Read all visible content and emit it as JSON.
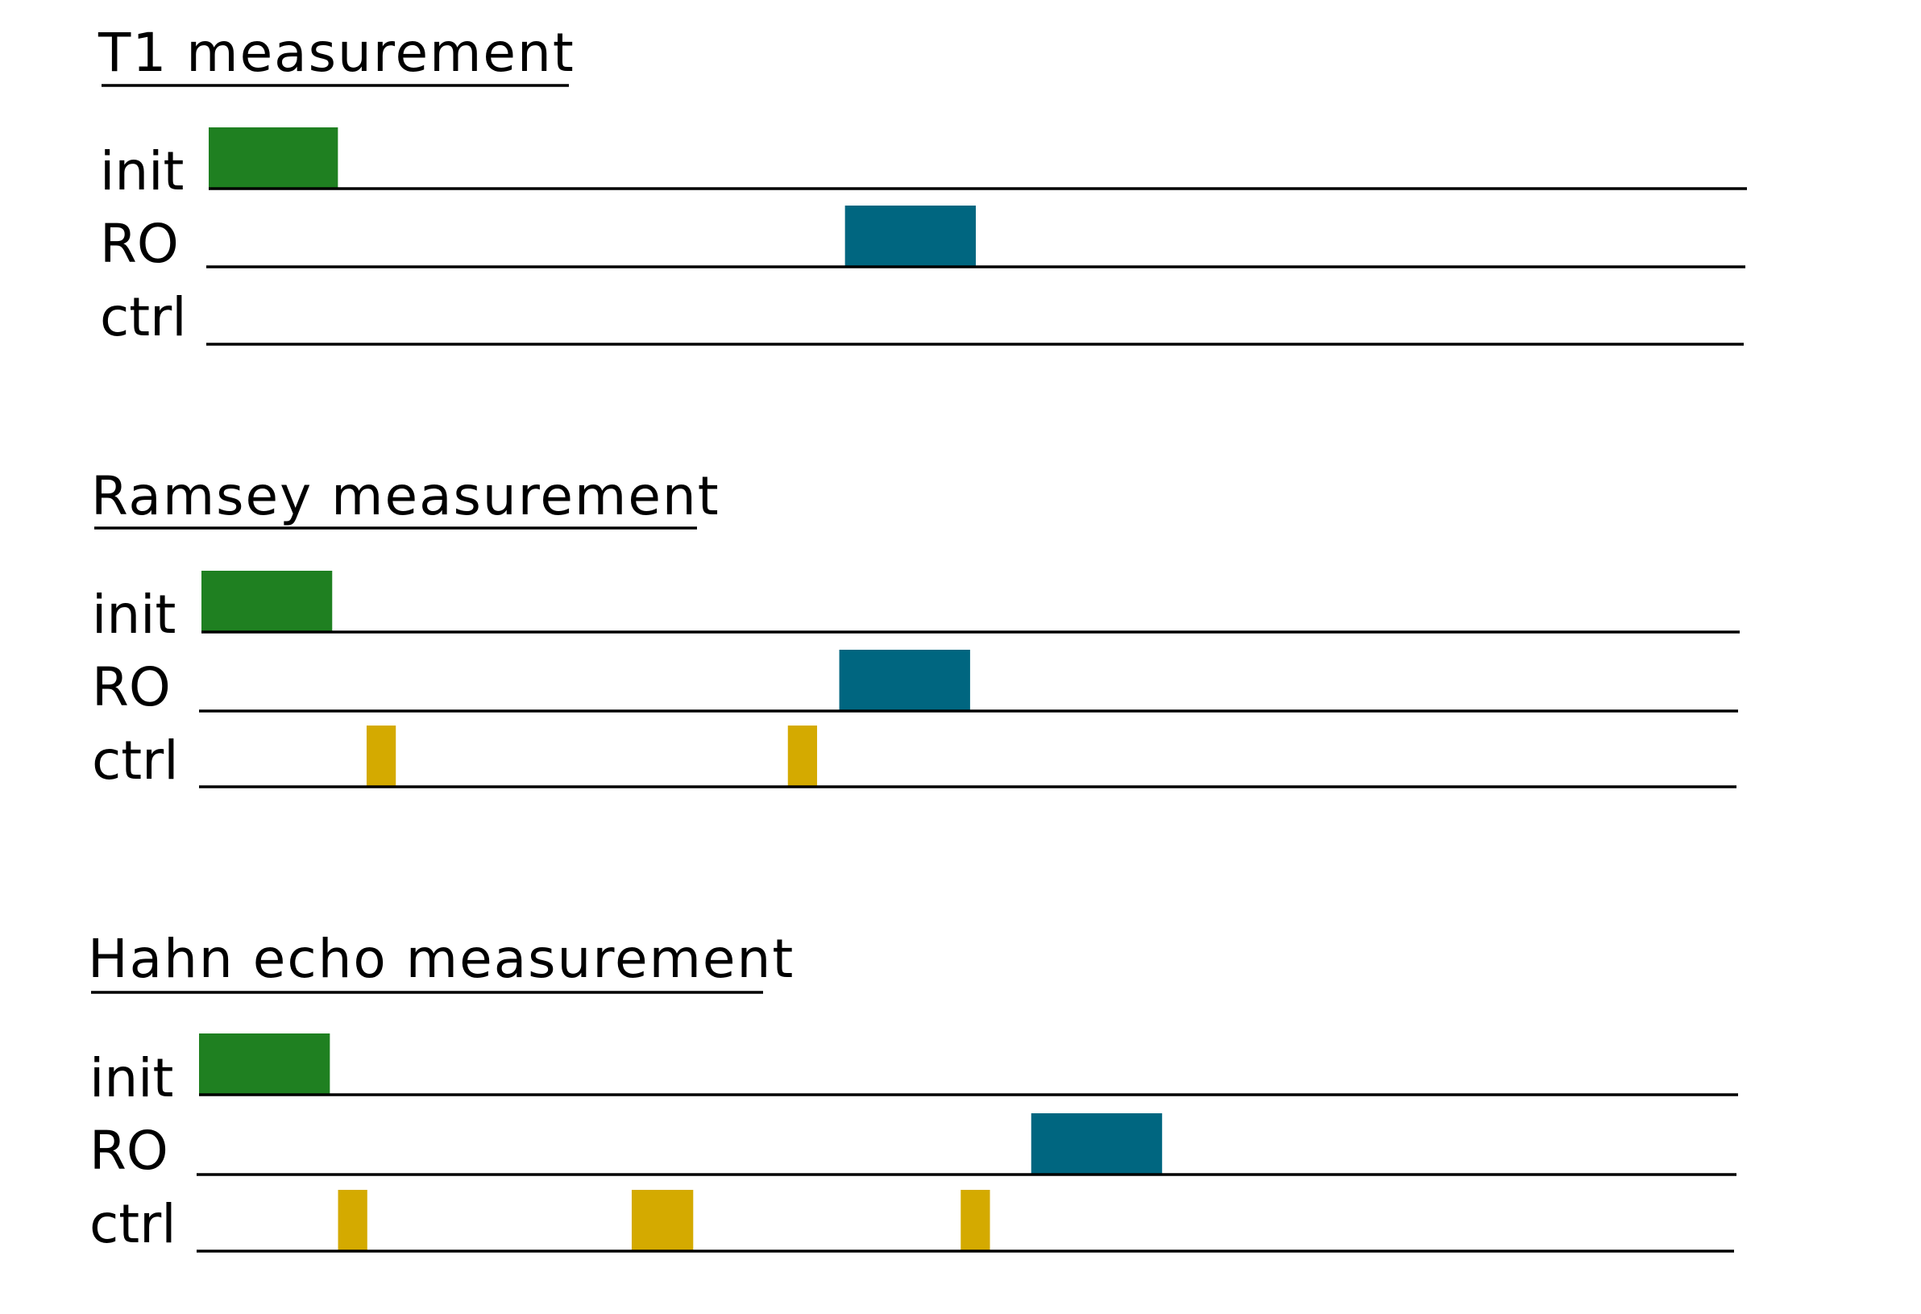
{
  "colors": {
    "init": "#1f8021",
    "readout": "#006680",
    "control": "#d4aa00"
  },
  "sections": [
    {
      "id": "t1",
      "title": "T1 measurement",
      "channels": [
        {
          "label": "init",
          "pulses": [
            {
              "type": "init",
              "start": 0.0,
              "end": 0.084
            }
          ]
        },
        {
          "label": "RO",
          "pulses": [
            {
              "type": "readout",
              "start": 0.415,
              "end": 0.5
            }
          ]
        },
        {
          "label": "ctrl",
          "pulses": []
        }
      ]
    },
    {
      "id": "ramsey",
      "title": "Ramsey measurement",
      "channels": [
        {
          "label": "init",
          "pulses": [
            {
              "type": "init",
              "start": 0.0,
              "end": 0.085
            }
          ]
        },
        {
          "label": "RO",
          "pulses": [
            {
              "type": "readout",
              "start": 0.416,
              "end": 0.501
            }
          ]
        },
        {
          "label": "ctrl",
          "pulses": [
            {
              "type": "control",
              "start": 0.109,
              "end": 0.128
            },
            {
              "type": "control",
              "start": 0.383,
              "end": 0.402
            }
          ]
        }
      ]
    },
    {
      "id": "hahn",
      "title": "Hahn echo measurement",
      "channels": [
        {
          "label": "init",
          "pulses": [
            {
              "type": "init",
              "start": 0.0,
              "end": 0.085
            }
          ]
        },
        {
          "label": "RO",
          "pulses": [
            {
              "type": "readout",
              "start": 0.542,
              "end": 0.627
            }
          ]
        },
        {
          "label": "ctrl",
          "pulses": [
            {
              "type": "control",
              "start": 0.092,
              "end": 0.111
            },
            {
              "type": "control",
              "start": 0.283,
              "end": 0.323
            },
            {
              "type": "control",
              "start": 0.497,
              "end": 0.516
            }
          ]
        }
      ]
    }
  ]
}
